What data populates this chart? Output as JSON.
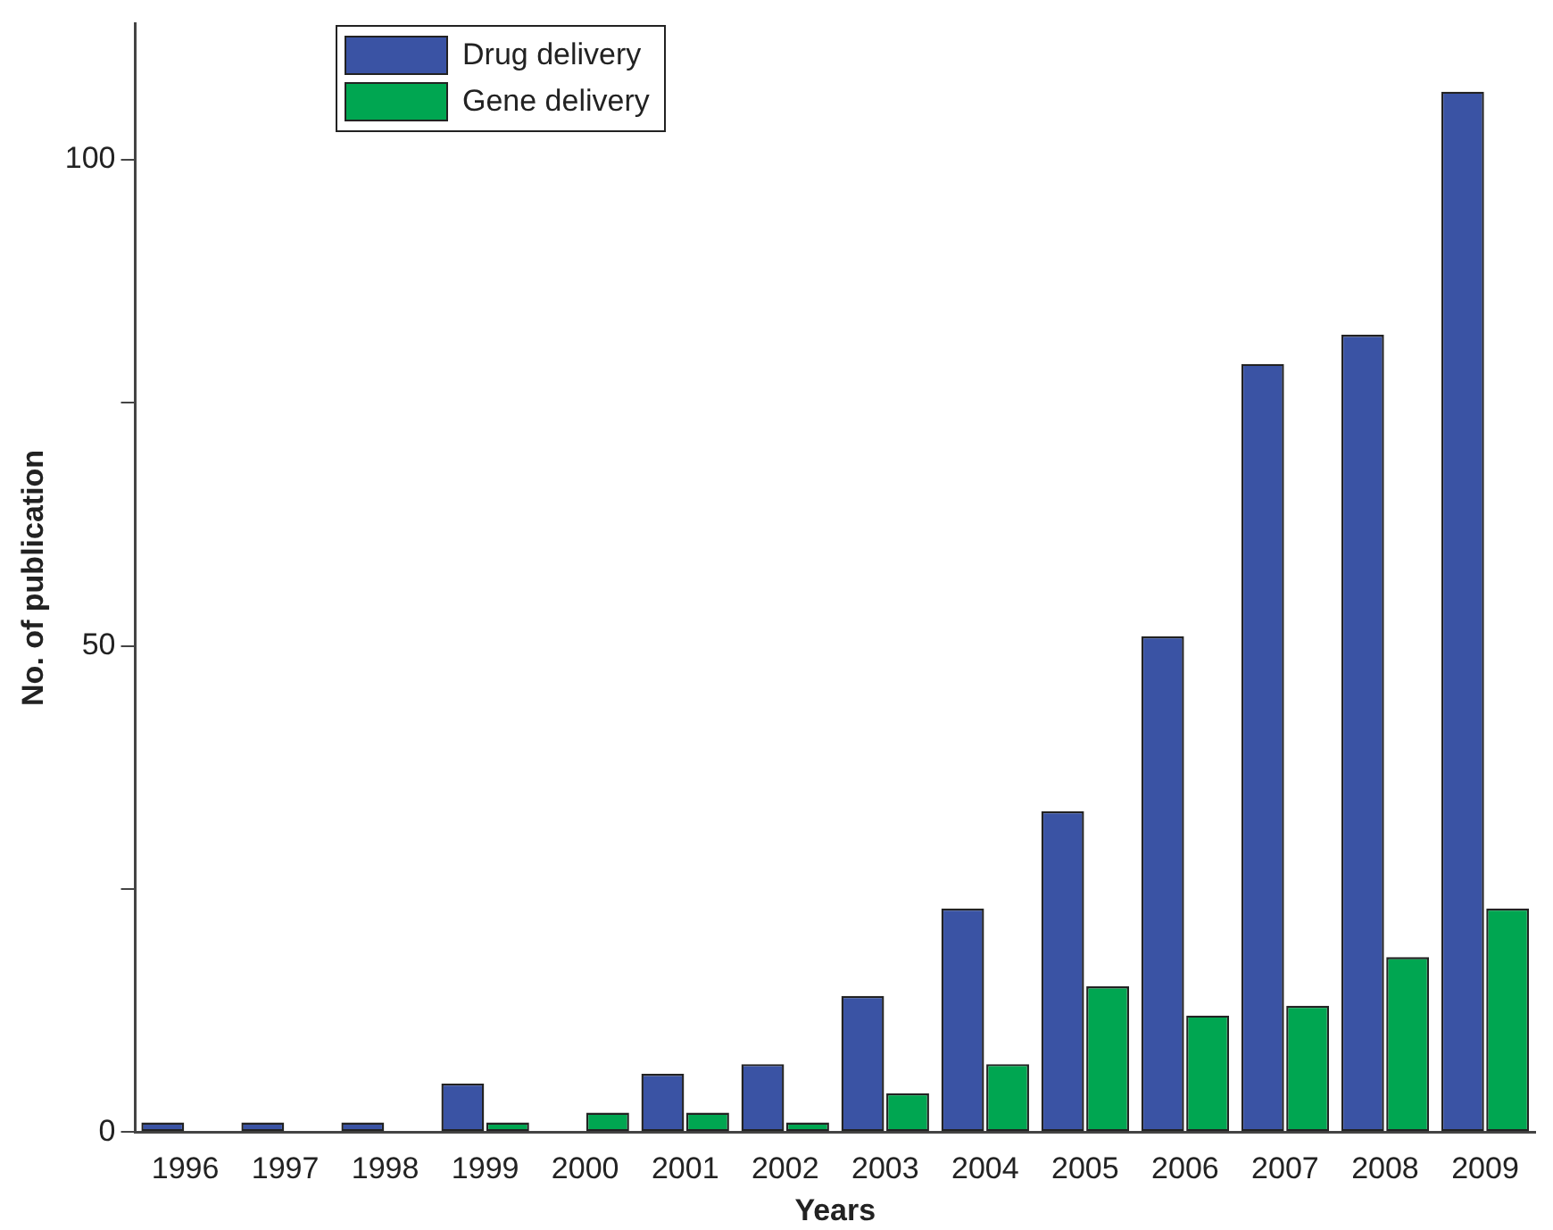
{
  "chart_data": {
    "type": "bar",
    "xlabel": "Years",
    "ylabel": "No. of publication",
    "categories": [
      "1996",
      "1997",
      "1998",
      "1999",
      "2000",
      "2001",
      "2002",
      "2003",
      "2004",
      "2005",
      "2006",
      "2007",
      "2008",
      "2009"
    ],
    "series": [
      {
        "name": "Drug delivery",
        "color": "#3a53a4",
        "values": [
          1,
          1,
          1,
          5,
          null,
          6,
          7,
          14,
          23,
          33,
          51,
          79,
          82,
          107
        ]
      },
      {
        "name": "Gene delivery",
        "color": "#00a651",
        "values": [
          null,
          null,
          null,
          1,
          2,
          2,
          1,
          4,
          7,
          15,
          12,
          13,
          18,
          23
        ]
      }
    ],
    "ylim": [
      0,
      114
    ],
    "yticks": [
      0,
      {
        "value": 25,
        "label": null
      },
      50,
      {
        "value": 75,
        "label": null
      },
      100
    ],
    "grid": false,
    "legend": "top left"
  }
}
